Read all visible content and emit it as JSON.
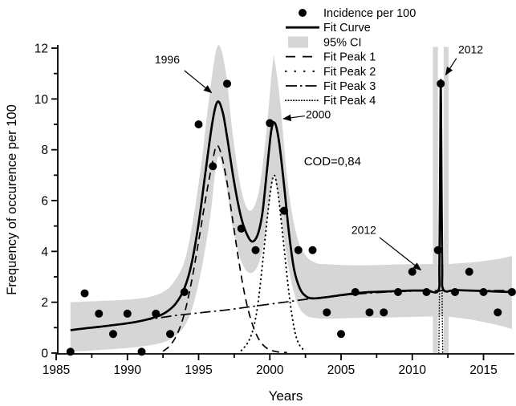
{
  "chart_data": {
    "type": "line",
    "title": "",
    "xlabel": "Years",
    "ylabel": "Frequency of occurence per 100",
    "xlim": [
      1985,
      2017.2
    ],
    "ylim": [
      0,
      12
    ],
    "grid": false,
    "legend_position": "top-center",
    "x_major_ticks": [
      1985,
      1990,
      1995,
      2000,
      2005,
      2010,
      2015
    ],
    "x_minor_ticks": [
      1987.5,
      1992.5,
      1997.5,
      2002.5,
      2007.5,
      2012.5
    ],
    "y_major_ticks": [
      0,
      2,
      4,
      6,
      8,
      10,
      12
    ],
    "y_minor_ticks": [
      1,
      3,
      5,
      7,
      9,
      11
    ],
    "colors": {
      "line": "#000000",
      "ci_band": "#d6d6d6",
      "background": "#ffffff"
    },
    "legend": [
      {
        "label": "Incidence per 100",
        "marker": "dot"
      },
      {
        "label": "Fit Curve",
        "marker": "solid-line"
      },
      {
        "label": "95% CI",
        "marker": "filled-box"
      },
      {
        "label": "Fit Peak 1",
        "marker": "dashed-line"
      },
      {
        "label": "Fit Peak 2",
        "marker": "dotted-line"
      },
      {
        "label": "Fit Peak 3",
        "marker": "dashdot-line"
      },
      {
        "label": "Fit Peak 4",
        "marker": "fine-dotted-line"
      }
    ],
    "annotations": [
      {
        "text": "1996",
        "text_x": 1992.8,
        "text_y": 11.55,
        "arrow": [
          [
            1994.0,
            11.12
          ],
          [
            1995.9,
            10.25
          ]
        ]
      },
      {
        "text": "2000",
        "text_x": 2003.4,
        "text_y": 9.4,
        "arrow": [
          [
            2002.45,
            9.33
          ],
          [
            2000.95,
            9.22
          ]
        ]
      },
      {
        "text": "COD=0,84",
        "text_x": 2004.4,
        "text_y": 7.55,
        "arrow": null
      },
      {
        "text": "2012",
        "text_x": 2006.6,
        "text_y": 4.85,
        "arrow": [
          [
            2007.7,
            4.55
          ],
          [
            2010.6,
            3.27
          ]
        ]
      },
      {
        "text": "2012",
        "text_x": 2014.1,
        "text_y": 11.95,
        "arrow": [
          [
            2013.1,
            11.6
          ],
          [
            2012.35,
            10.95
          ]
        ]
      }
    ],
    "incidence_points": [
      [
        1986,
        0.05
      ],
      [
        1987,
        2.35
      ],
      [
        1988,
        1.55
      ],
      [
        1989,
        0.75
      ],
      [
        1990,
        1.55
      ],
      [
        1991,
        0.05
      ],
      [
        1992,
        1.55
      ],
      [
        1993,
        0.75
      ],
      [
        1994,
        2.4
      ],
      [
        1995,
        9.0
      ],
      [
        1996,
        7.35
      ],
      [
        1997,
        10.6
      ],
      [
        1998,
        4.9
      ],
      [
        1999,
        4.05
      ],
      [
        2000,
        9.05
      ],
      [
        2001,
        5.6
      ],
      [
        2002,
        4.05
      ],
      [
        2003,
        4.05
      ],
      [
        2004,
        1.6
      ],
      [
        2005,
        0.75
      ],
      [
        2006,
        2.4
      ],
      [
        2007,
        1.6
      ],
      [
        2008,
        1.6
      ],
      [
        2009,
        2.4
      ],
      [
        2010,
        3.2
      ],
      [
        2011,
        2.4
      ],
      [
        2011.8,
        4.05
      ],
      [
        2012,
        10.6
      ],
      [
        2013,
        2.4
      ],
      [
        2014,
        3.2
      ],
      [
        2015,
        2.4
      ],
      [
        2016,
        1.6
      ],
      [
        2017,
        2.4
      ]
    ],
    "fit_curve": [
      [
        1986,
        0.9
      ],
      [
        1987,
        0.97
      ],
      [
        1988,
        1.03
      ],
      [
        1989,
        1.1
      ],
      [
        1990,
        1.17
      ],
      [
        1991,
        1.27
      ],
      [
        1992,
        1.42
      ],
      [
        1992.7,
        1.6
      ],
      [
        1993.4,
        1.95
      ],
      [
        1994,
        2.55
      ],
      [
        1994.5,
        3.5
      ],
      [
        1995,
        5.1
      ],
      [
        1995.5,
        7.2
      ],
      [
        1996,
        9.2
      ],
      [
        1996.35,
        9.9
      ],
      [
        1996.7,
        9.45
      ],
      [
        1997,
        8.5
      ],
      [
        1997.5,
        6.7
      ],
      [
        1998,
        5.3
      ],
      [
        1998.5,
        4.55
      ],
      [
        1998.85,
        4.4
      ],
      [
        1999.2,
        4.75
      ],
      [
        1999.5,
        5.6
      ],
      [
        1999.8,
        7.2
      ],
      [
        2000.1,
        8.75
      ],
      [
        2000.35,
        9.05
      ],
      [
        2000.65,
        8.3
      ],
      [
        2001,
        6.6
      ],
      [
        2001.35,
        4.7
      ],
      [
        2001.7,
        3.3
      ],
      [
        2002.1,
        2.55
      ],
      [
        2002.5,
        2.25
      ],
      [
        2003,
        2.15
      ],
      [
        2004,
        2.2
      ],
      [
        2005,
        2.28
      ],
      [
        2006,
        2.35
      ],
      [
        2007,
        2.4
      ],
      [
        2008,
        2.42
      ],
      [
        2009,
        2.44
      ],
      [
        2010,
        2.46
      ],
      [
        2011,
        2.46
      ],
      [
        2011.82,
        2.46
      ],
      [
        2011.9,
        3.5
      ],
      [
        2011.96,
        7.5
      ],
      [
        2012,
        10.75
      ],
      [
        2012.04,
        7.5
      ],
      [
        2012.1,
        3.5
      ],
      [
        2012.18,
        2.5
      ],
      [
        2013,
        2.48
      ],
      [
        2014,
        2.46
      ],
      [
        2015,
        2.44
      ],
      [
        2016,
        2.42
      ],
      [
        2017,
        2.4
      ]
    ],
    "ci_band": [
      [
        1986,
        0.05,
        2.0
      ],
      [
        1988,
        0.12,
        2.05
      ],
      [
        1990,
        0.2,
        2.1
      ],
      [
        1991.5,
        0.3,
        2.2
      ],
      [
        1992.5,
        0.42,
        2.4
      ],
      [
        1993.2,
        0.6,
        2.75
      ],
      [
        1994,
        1.05,
        3.6
      ],
      [
        1994.6,
        1.85,
        5.2
      ],
      [
        1995.2,
        3.3,
        7.5
      ],
      [
        1995.8,
        5.3,
        10.3
      ],
      [
        1996.35,
        7.7,
        12.1
      ],
      [
        1996.9,
        6.7,
        11.1
      ],
      [
        1997.4,
        4.9,
        8.6
      ],
      [
        1998,
        3.6,
        6.4
      ],
      [
        1998.6,
        3.15,
        5.6
      ],
      [
        1999.2,
        3.5,
        6.3
      ],
      [
        1999.7,
        4.7,
        8.4
      ],
      [
        2000.2,
        6.8,
        11.4
      ],
      [
        2000.35,
        6.9,
        11.45
      ],
      [
        2000.7,
        5.7,
        10.0
      ],
      [
        2001.3,
        3.4,
        6.5
      ],
      [
        2001.9,
        2.0,
        4.6
      ],
      [
        2002.5,
        1.5,
        3.85
      ],
      [
        2003.2,
        1.38,
        3.55
      ],
      [
        2004,
        1.35,
        3.5
      ],
      [
        2006,
        1.38,
        3.45
      ],
      [
        2008,
        1.4,
        3.47
      ],
      [
        2010,
        1.42,
        3.5
      ],
      [
        2011.6,
        1.44,
        3.5
      ],
      [
        2012.4,
        1.44,
        3.5
      ],
      [
        2013,
        1.4,
        3.52
      ],
      [
        2014,
        1.33,
        3.56
      ],
      [
        2015,
        1.22,
        3.62
      ],
      [
        2016,
        1.1,
        3.7
      ],
      [
        2017,
        0.95,
        3.82
      ]
    ],
    "ci_spike_bands": [
      {
        "x_from": 2011.45,
        "x_to": 2011.8,
        "y_from": 0,
        "y_to": 12.05
      },
      {
        "x_from": 2012.2,
        "x_to": 2012.55,
        "y_from": 0,
        "y_to": 12.05
      }
    ],
    "fit_peaks": {
      "peak1": [
        [
          1992.5,
          0.07
        ],
        [
          1993.0,
          0.3
        ],
        [
          1993.5,
          0.75
        ],
        [
          1994.0,
          1.55
        ],
        [
          1994.5,
          2.8
        ],
        [
          1995.0,
          4.4
        ],
        [
          1995.5,
          6.1
        ],
        [
          1995.9,
          7.3
        ],
        [
          1996.25,
          8.15
        ],
        [
          1996.6,
          7.8
        ],
        [
          1997.0,
          6.7
        ],
        [
          1997.4,
          5.2
        ],
        [
          1997.8,
          3.7
        ],
        [
          1998.2,
          2.4
        ],
        [
          1998.6,
          1.45
        ],
        [
          1999.0,
          0.8
        ],
        [
          1999.4,
          0.4
        ],
        [
          1999.9,
          0.15
        ],
        [
          2000.5,
          0.05
        ],
        [
          2001.2,
          0.02
        ]
      ],
      "peak2": [
        [
          1998.0,
          0.1
        ],
        [
          1998.5,
          0.45
        ],
        [
          1998.9,
          1.1
        ],
        [
          1999.2,
          2.1
        ],
        [
          1999.5,
          3.6
        ],
        [
          1999.8,
          5.2
        ],
        [
          2000.05,
          6.4
        ],
        [
          2000.3,
          7.0
        ],
        [
          2000.55,
          6.4
        ],
        [
          2000.8,
          5.2
        ],
        [
          2001.1,
          3.6
        ],
        [
          2001.4,
          2.1
        ],
        [
          2001.7,
          1.0
        ],
        [
          2002.0,
          0.4
        ],
        [
          2002.4,
          0.1
        ]
      ],
      "peak3": [
        [
          1991,
          1.28
        ],
        [
          1993,
          1.45
        ],
        [
          1995,
          1.58
        ],
        [
          1997,
          1.7
        ],
        [
          1999,
          1.85
        ],
        [
          2001,
          2.0
        ],
        [
          2003,
          2.15
        ],
        [
          2005,
          2.27
        ],
        [
          2007,
          2.36
        ],
        [
          2009,
          2.42
        ],
        [
          2011,
          2.45
        ],
        [
          2013,
          2.46
        ],
        [
          2015,
          2.46
        ],
        [
          2017,
          2.46
        ]
      ],
      "peak4": [
        [
          2011.86,
          0
        ],
        [
          2011.9,
          2.0
        ],
        [
          2011.93,
          5.0
        ],
        [
          2011.96,
          8.5
        ],
        [
          2012.0,
          10.3
        ],
        [
          2012.04,
          8.5
        ],
        [
          2012.07,
          5.0
        ],
        [
          2012.1,
          2.0
        ],
        [
          2012.14,
          0
        ]
      ]
    }
  }
}
